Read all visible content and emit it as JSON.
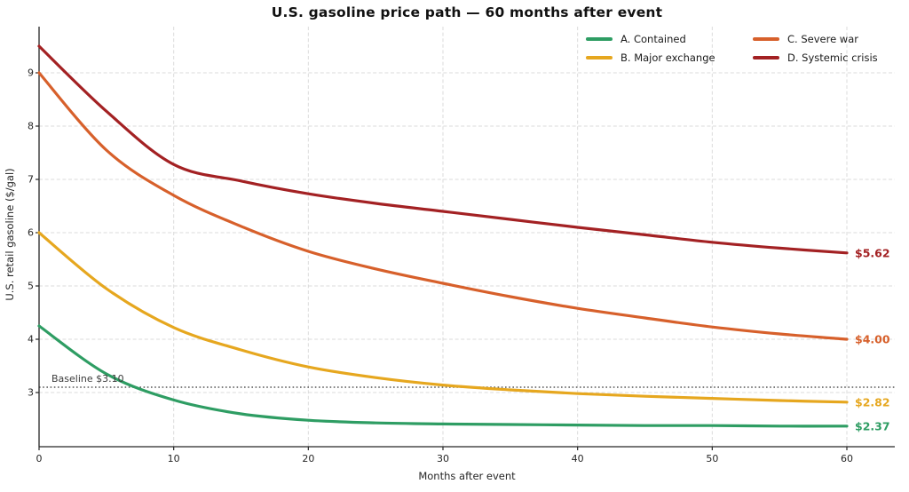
{
  "title": "U.S. gasoline price path — 60 months after event",
  "chart_data": {
    "type": "line",
    "x": [
      0,
      5,
      10,
      15,
      20,
      25,
      30,
      35,
      40,
      45,
      50,
      55,
      60
    ],
    "series": [
      {
        "name": "A. Contained",
        "color": "#2e9d63",
        "end_label": "$2.37",
        "values": [
          4.25,
          3.35,
          2.86,
          2.6,
          2.48,
          2.43,
          2.41,
          2.4,
          2.39,
          2.38,
          2.38,
          2.37,
          2.37
        ]
      },
      {
        "name": "B. Major exchange",
        "color": "#e6a71f",
        "end_label": "$2.82",
        "values": [
          6.0,
          4.95,
          4.22,
          3.8,
          3.48,
          3.28,
          3.14,
          3.05,
          2.98,
          2.93,
          2.89,
          2.85,
          2.82
        ]
      },
      {
        "name": "C. Severe war",
        "color": "#d7602b",
        "end_label": "$4.00",
        "values": [
          9.0,
          7.55,
          6.7,
          6.12,
          5.65,
          5.32,
          5.05,
          4.8,
          4.58,
          4.4,
          4.23,
          4.1,
          4.0
        ]
      },
      {
        "name": "D. Systemic crisis",
        "color": "#a32123",
        "end_label": "$5.62",
        "values": [
          9.5,
          8.28,
          7.28,
          6.97,
          6.73,
          6.55,
          6.4,
          6.25,
          6.1,
          5.96,
          5.82,
          5.71,
          5.62
        ]
      }
    ],
    "baseline": {
      "value": 3.1,
      "label": "Baseline $3.10",
      "color": "#555555"
    },
    "xlabel": "Months after event",
    "ylabel": "U.S. retail gasoline ($/gal)",
    "xticks": [
      0,
      10,
      20,
      30,
      40,
      50,
      60
    ],
    "yticks": [
      3,
      4,
      5,
      6,
      7,
      8,
      9
    ],
    "xlim": [
      0,
      63.5
    ],
    "ylim": [
      1.98,
      9.88
    ],
    "grid": true,
    "grid_color": "#dbdbdb",
    "spine_color": "#262626",
    "legend_position": "upper right"
  }
}
